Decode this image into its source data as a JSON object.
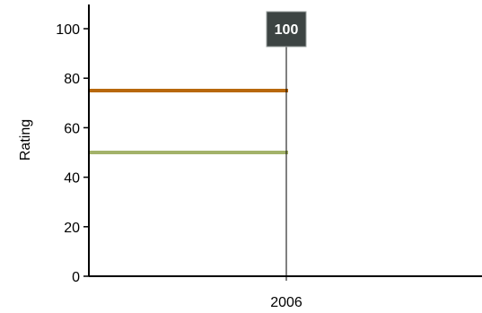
{
  "chart_data": {
    "type": "line",
    "title": "",
    "xlabel": "",
    "ylabel": "Rating",
    "ylim": [
      0,
      110
    ],
    "yticks": [
      0,
      20,
      40,
      60,
      80,
      100
    ],
    "x_tick_labels": [
      "2006"
    ],
    "grid": false,
    "series": [
      {
        "values": [
          75
        ],
        "color": "#b8680c"
      },
      {
        "values": [
          50
        ],
        "color": "#a3b26a"
      }
    ],
    "marker": {
      "x": "2006",
      "label": "100"
    }
  }
}
